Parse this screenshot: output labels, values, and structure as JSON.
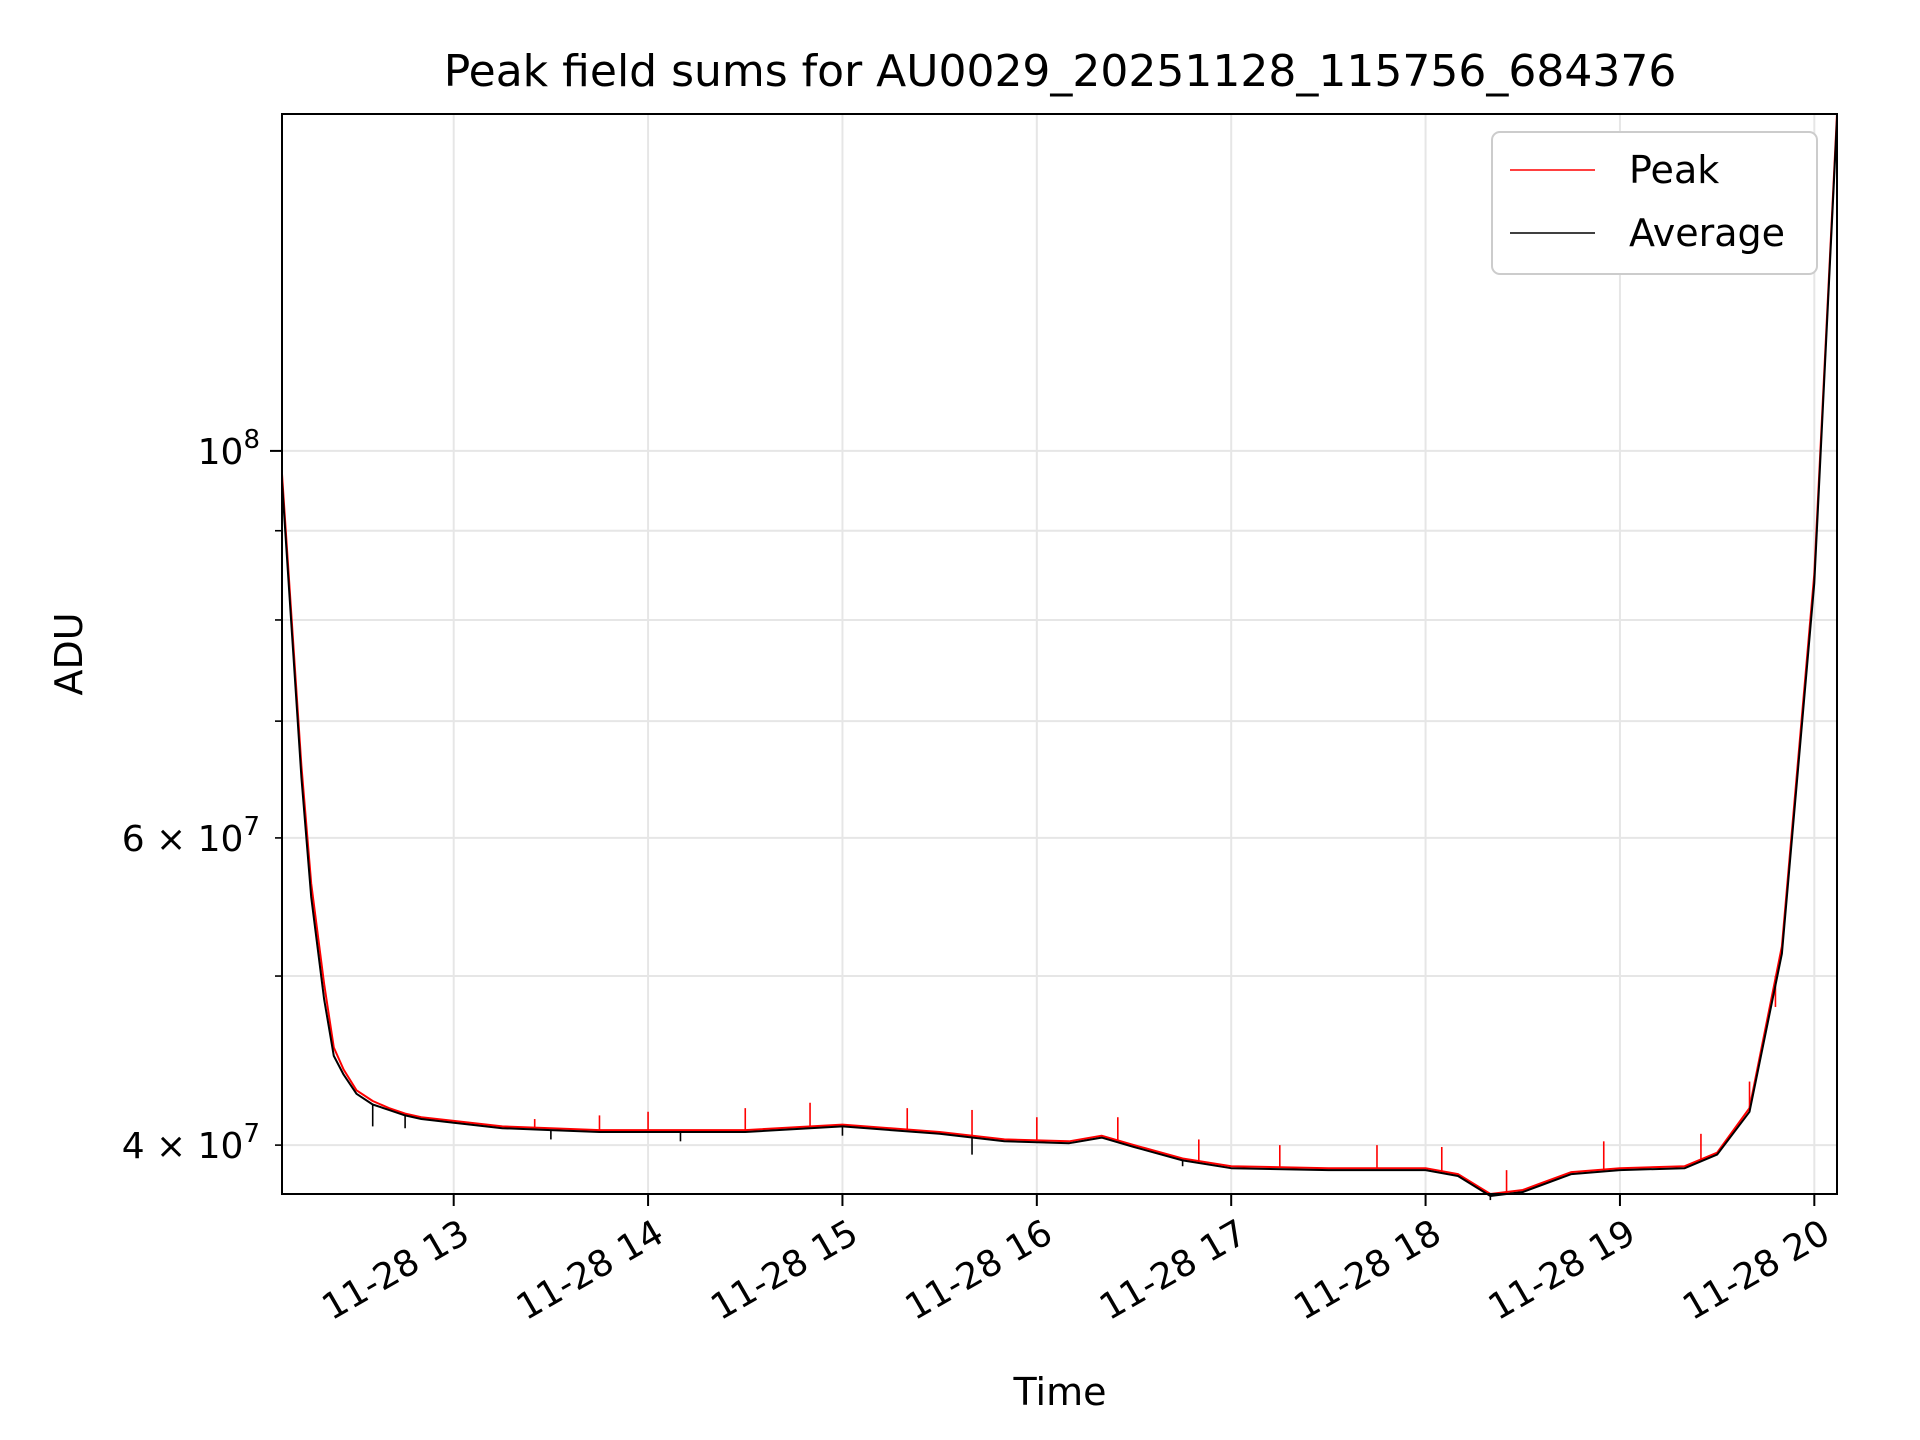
{
  "chart_data": {
    "type": "line",
    "title": "Peak field sums for AU0029_20251128_115756_684376",
    "xlabel": "Time",
    "ylabel": "ADU",
    "y_scale": "log",
    "ylim": [
      37500000,
      156000000
    ],
    "xlim": [
      "2025-11-28 12:07",
      "2025-11-28 20:07"
    ],
    "grid": true,
    "legend_position": "top-right",
    "x_tick_labels": [
      "11-28 13",
      "11-28 14",
      "11-28 15",
      "11-28 16",
      "11-28 17",
      "11-28 18",
      "11-28 19",
      "11-28 20"
    ],
    "x_tick_values": [
      "2025-11-28 13:00",
      "2025-11-28 14:00",
      "2025-11-28 15:00",
      "2025-11-28 16:00",
      "2025-11-28 17:00",
      "2025-11-28 18:00",
      "2025-11-28 19:00",
      "2025-11-28 20:00"
    ],
    "y_major_ticks": [
      {
        "value": 100000000,
        "mantissa": "10",
        "exponent": "8"
      }
    ],
    "y_minor_ticks": [
      {
        "value": 40000000,
        "mantissa": "4 × 10",
        "exponent": "7",
        "labeled": true
      },
      {
        "value": 50000000,
        "labeled": false
      },
      {
        "value": 60000000,
        "mantissa": "6 × 10",
        "exponent": "7",
        "labeled": true
      },
      {
        "value": 70000000,
        "labeled": false
      },
      {
        "value": 80000000,
        "labeled": false
      },
      {
        "value": 90000000,
        "labeled": false
      }
    ],
    "series": [
      {
        "name": "Peak",
        "color": "#ff0000",
        "x": [
          "2025-11-28 12:07",
          "2025-11-28 12:10",
          "2025-11-28 12:13",
          "2025-11-28 12:16",
          "2025-11-28 12:20",
          "2025-11-28 12:23",
          "2025-11-28 12:26",
          "2025-11-28 12:30",
          "2025-11-28 12:35",
          "2025-11-28 12:40",
          "2025-11-28 12:45",
          "2025-11-28 12:50",
          "2025-11-28 13:00",
          "2025-11-28 13:15",
          "2025-11-28 13:30",
          "2025-11-28 13:45",
          "2025-11-28 14:00",
          "2025-11-28 14:30",
          "2025-11-28 15:00",
          "2025-11-28 15:30",
          "2025-11-28 15:50",
          "2025-11-28 16:10",
          "2025-11-28 16:20",
          "2025-11-28 16:30",
          "2025-11-28 16:45",
          "2025-11-28 17:00",
          "2025-11-28 17:30",
          "2025-11-28 18:00",
          "2025-11-28 18:10",
          "2025-11-28 18:20",
          "2025-11-28 18:30",
          "2025-11-28 18:35",
          "2025-11-28 18:45",
          "2025-11-28 19:00",
          "2025-11-28 19:20",
          "2025-11-28 19:30",
          "2025-11-28 19:40",
          "2025-11-28 19:50",
          "2025-11-28 20:00",
          "2025-11-28 20:07"
        ],
        "values": [
          97000000,
          80000000,
          66000000,
          56500000,
          49500000,
          45500000,
          44200000,
          43000000,
          42400000,
          42000000,
          41700000,
          41500000,
          41300000,
          41000000,
          40900000,
          40800000,
          40800000,
          40800000,
          41100000,
          40700000,
          40300000,
          40200000,
          40500000,
          40000000,
          39300000,
          38900000,
          38800000,
          38800000,
          38500000,
          37500000,
          37700000,
          38000000,
          38600000,
          38800000,
          38900000,
          39600000,
          42000000,
          52000000,
          85000000,
          156000000
        ],
        "spikes": [
          {
            "x": "2025-11-28 13:25",
            "values": [
              41400000
            ]
          },
          {
            "x": "2025-11-28 13:45",
            "values": [
              41600000
            ]
          },
          {
            "x": "2025-11-28 14:00",
            "values": [
              41800000
            ]
          },
          {
            "x": "2025-11-28 14:30",
            "values": [
              42000000
            ]
          },
          {
            "x": "2025-11-28 14:50",
            "values": [
              42300000
            ]
          },
          {
            "x": "2025-11-28 15:20",
            "values": [
              42000000
            ]
          },
          {
            "x": "2025-11-28 15:40",
            "values": [
              41900000
            ]
          },
          {
            "x": "2025-11-28 16:00",
            "values": [
              41500000
            ]
          },
          {
            "x": "2025-11-28 16:25",
            "values": [
              41500000
            ]
          },
          {
            "x": "2025-11-28 16:50",
            "values": [
              40300000
            ]
          },
          {
            "x": "2025-11-28 17:15",
            "values": [
              40000000
            ]
          },
          {
            "x": "2025-11-28 17:45",
            "values": [
              40000000
            ]
          },
          {
            "x": "2025-11-28 18:05",
            "values": [
              39900000
            ]
          },
          {
            "x": "2025-11-28 18:25",
            "values": [
              38700000
            ]
          },
          {
            "x": "2025-11-28 18:55",
            "values": [
              40200000
            ]
          },
          {
            "x": "2025-11-28 19:25",
            "values": [
              40600000
            ]
          },
          {
            "x": "2025-11-28 19:40",
            "values": [
              43500000
            ]
          },
          {
            "x": "2025-11-28 19:48",
            "values": [
              48000000
            ]
          }
        ]
      },
      {
        "name": "Average",
        "color": "#000000",
        "x": [
          "2025-11-28 12:07",
          "2025-11-28 12:10",
          "2025-11-28 12:13",
          "2025-11-28 12:16",
          "2025-11-28 12:20",
          "2025-11-28 12:23",
          "2025-11-28 12:26",
          "2025-11-28 12:30",
          "2025-11-28 12:35",
          "2025-11-28 12:40",
          "2025-11-28 12:45",
          "2025-11-28 12:50",
          "2025-11-28 13:00",
          "2025-11-28 13:15",
          "2025-11-28 13:30",
          "2025-11-28 13:45",
          "2025-11-28 14:00",
          "2025-11-28 14:30",
          "2025-11-28 15:00",
          "2025-11-28 15:30",
          "2025-11-28 15:50",
          "2025-11-28 16:10",
          "2025-11-28 16:20",
          "2025-11-28 16:30",
          "2025-11-28 16:45",
          "2025-11-28 17:00",
          "2025-11-28 17:30",
          "2025-11-28 18:00",
          "2025-11-28 18:10",
          "2025-11-28 18:20",
          "2025-11-28 18:30",
          "2025-11-28 18:35",
          "2025-11-28 18:45",
          "2025-11-28 19:00",
          "2025-11-28 19:20",
          "2025-11-28 19:30",
          "2025-11-28 19:40",
          "2025-11-28 19:50",
          "2025-11-28 20:00",
          "2025-11-28 20:07"
        ],
        "values": [
          96000000,
          79000000,
          65000000,
          55500000,
          48500000,
          45000000,
          43900000,
          42800000,
          42200000,
          41900000,
          41600000,
          41400000,
          41200000,
          40900000,
          40800000,
          40700000,
          40700000,
          40700000,
          41000000,
          40600000,
          40200000,
          40100000,
          40400000,
          39900000,
          39200000,
          38800000,
          38700000,
          38700000,
          38400000,
          37400000,
          37600000,
          37900000,
          38500000,
          38700000,
          38800000,
          39500000,
          41800000,
          51500000,
          84000000,
          155000000
        ],
        "spikes": [
          {
            "x": "2025-11-28 12:35",
            "values": [
              41000000
            ]
          },
          {
            "x": "2025-11-28 12:45",
            "values": [
              40900000
            ]
          },
          {
            "x": "2025-11-28 13:30",
            "values": [
              40300000
            ]
          },
          {
            "x": "2025-11-28 14:10",
            "values": [
              40200000
            ]
          },
          {
            "x": "2025-11-28 15:00",
            "values": [
              40500000
            ]
          },
          {
            "x": "2025-11-28 15:40",
            "values": [
              39500000
            ]
          },
          {
            "x": "2025-11-28 16:45",
            "values": [
              38900000
            ]
          },
          {
            "x": "2025-11-28 18:20",
            "values": [
              37200000
            ]
          }
        ]
      }
    ]
  }
}
